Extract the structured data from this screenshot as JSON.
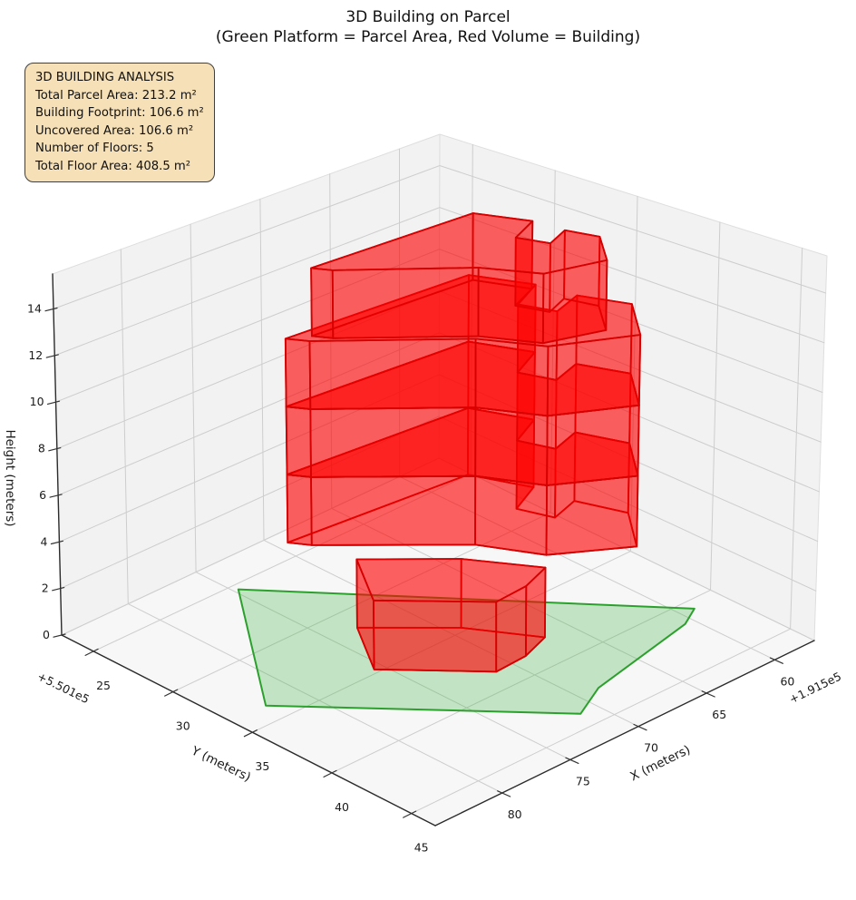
{
  "title": {
    "line1": "3D Building on Parcel",
    "line2": "(Green Platform = Parcel Area, Red Volume = Building)"
  },
  "info_box": {
    "lines": [
      "3D BUILDING ANALYSIS",
      "Total Parcel Area: 213.2 m²",
      "Building Footprint: 106.6 m²",
      "Uncovered Area: 106.6 m²",
      "Number of Floors: 5",
      "Total Floor Area: 408.5 m²"
    ],
    "bg_color": "#f5deb3"
  },
  "chart_data": {
    "type": "3d-building-plot",
    "x_axis": {
      "label": "X (meters)",
      "ticks": [
        60,
        65,
        70,
        75,
        80
      ],
      "offset_text": "+1.915e5",
      "range": [
        57.1,
        84.9
      ]
    },
    "y_axis": {
      "label": "Y (meters)",
      "ticks": [
        25,
        30,
        35,
        40,
        45
      ],
      "offset_text": "+5.501e5",
      "range": [
        23.0,
        46.5
      ]
    },
    "z_axis": {
      "label": "Height (meters)",
      "ticks": [
        0,
        2,
        4,
        6,
        8,
        10,
        12,
        14
      ],
      "range": [
        0,
        15.5
      ]
    },
    "parcel": {
      "name": "Parcel Area",
      "edge_color": "#2ca02c",
      "fill_color": "rgba(60,180,60,0.28)",
      "polygon_xy": [
        [
          74.7,
          25.4
        ],
        [
          82.4,
          33.7
        ],
        [
          71.2,
          43.9
        ],
        [
          68.6,
          42.8
        ],
        [
          60.6,
          41.4
        ],
        [
          59.1,
          40.7
        ]
      ]
    },
    "building": {
      "name": "Building",
      "edge_color": "#d60000",
      "fill_color": "rgba(255,0,0,0.38)",
      "floor_height_m": 3,
      "floors": [
        {
          "level": 1,
          "z0": 0,
          "z1": 3,
          "footprint": "ground"
        },
        {
          "level": 2,
          "z0": 3,
          "z1": 6,
          "footprint": "main"
        },
        {
          "level": 3,
          "z0": 6,
          "z1": 9,
          "footprint": "main"
        },
        {
          "level": 4,
          "z0": 9,
          "z1": 12,
          "footprint": "main"
        },
        {
          "level": 5,
          "z0": 12,
          "z1": 15,
          "footprint": "upper"
        }
      ],
      "footprints": {
        "ground": [
          [
            73.1,
            31.5
          ],
          [
            75.6,
            34.7
          ],
          [
            71.2,
            38.6
          ],
          [
            68.9,
            38.5
          ],
          [
            66.8,
            37.9
          ],
          [
            69.2,
            34.7
          ]
        ],
        "main": [
          [
            74.4,
            28.3
          ],
          [
            73.7,
            29.2
          ],
          [
            67.6,
            34.2
          ],
          [
            65.8,
            37.1
          ],
          [
            61.9,
            39.4
          ],
          [
            59.6,
            36.9
          ],
          [
            60.6,
            34.4
          ],
          [
            62.6,
            34.9
          ],
          [
            63.3,
            33.1
          ],
          [
            61.0,
            32.2
          ],
          [
            62.4,
            29.3
          ]
        ],
        "upper": [
          [
            73.2,
            28.9
          ],
          [
            72.6,
            29.7
          ],
          [
            67.3,
            34.1
          ],
          [
            65.7,
            36.7
          ],
          [
            62.6,
            37.9
          ],
          [
            60.8,
            35.9
          ],
          [
            61.3,
            34.2
          ],
          [
            62.9,
            34.7
          ],
          [
            63.5,
            33.1
          ],
          [
            61.5,
            32.4
          ],
          [
            62.7,
            29.8
          ]
        ]
      }
    },
    "stats": {
      "total_parcel_area_m2": 213.2,
      "building_footprint_m2": 106.6,
      "uncovered_area_m2": 106.6,
      "number_of_floors": 5,
      "total_floor_area_m2": 408.5
    },
    "style": {
      "pane_wall_color": "#f2f2f3",
      "pane_floor_color": "#f7f7f8",
      "grid_color": "#cdcdcd",
      "spine_color": "#2b2b2b",
      "tick_label_color": "#1a1a1a"
    }
  }
}
